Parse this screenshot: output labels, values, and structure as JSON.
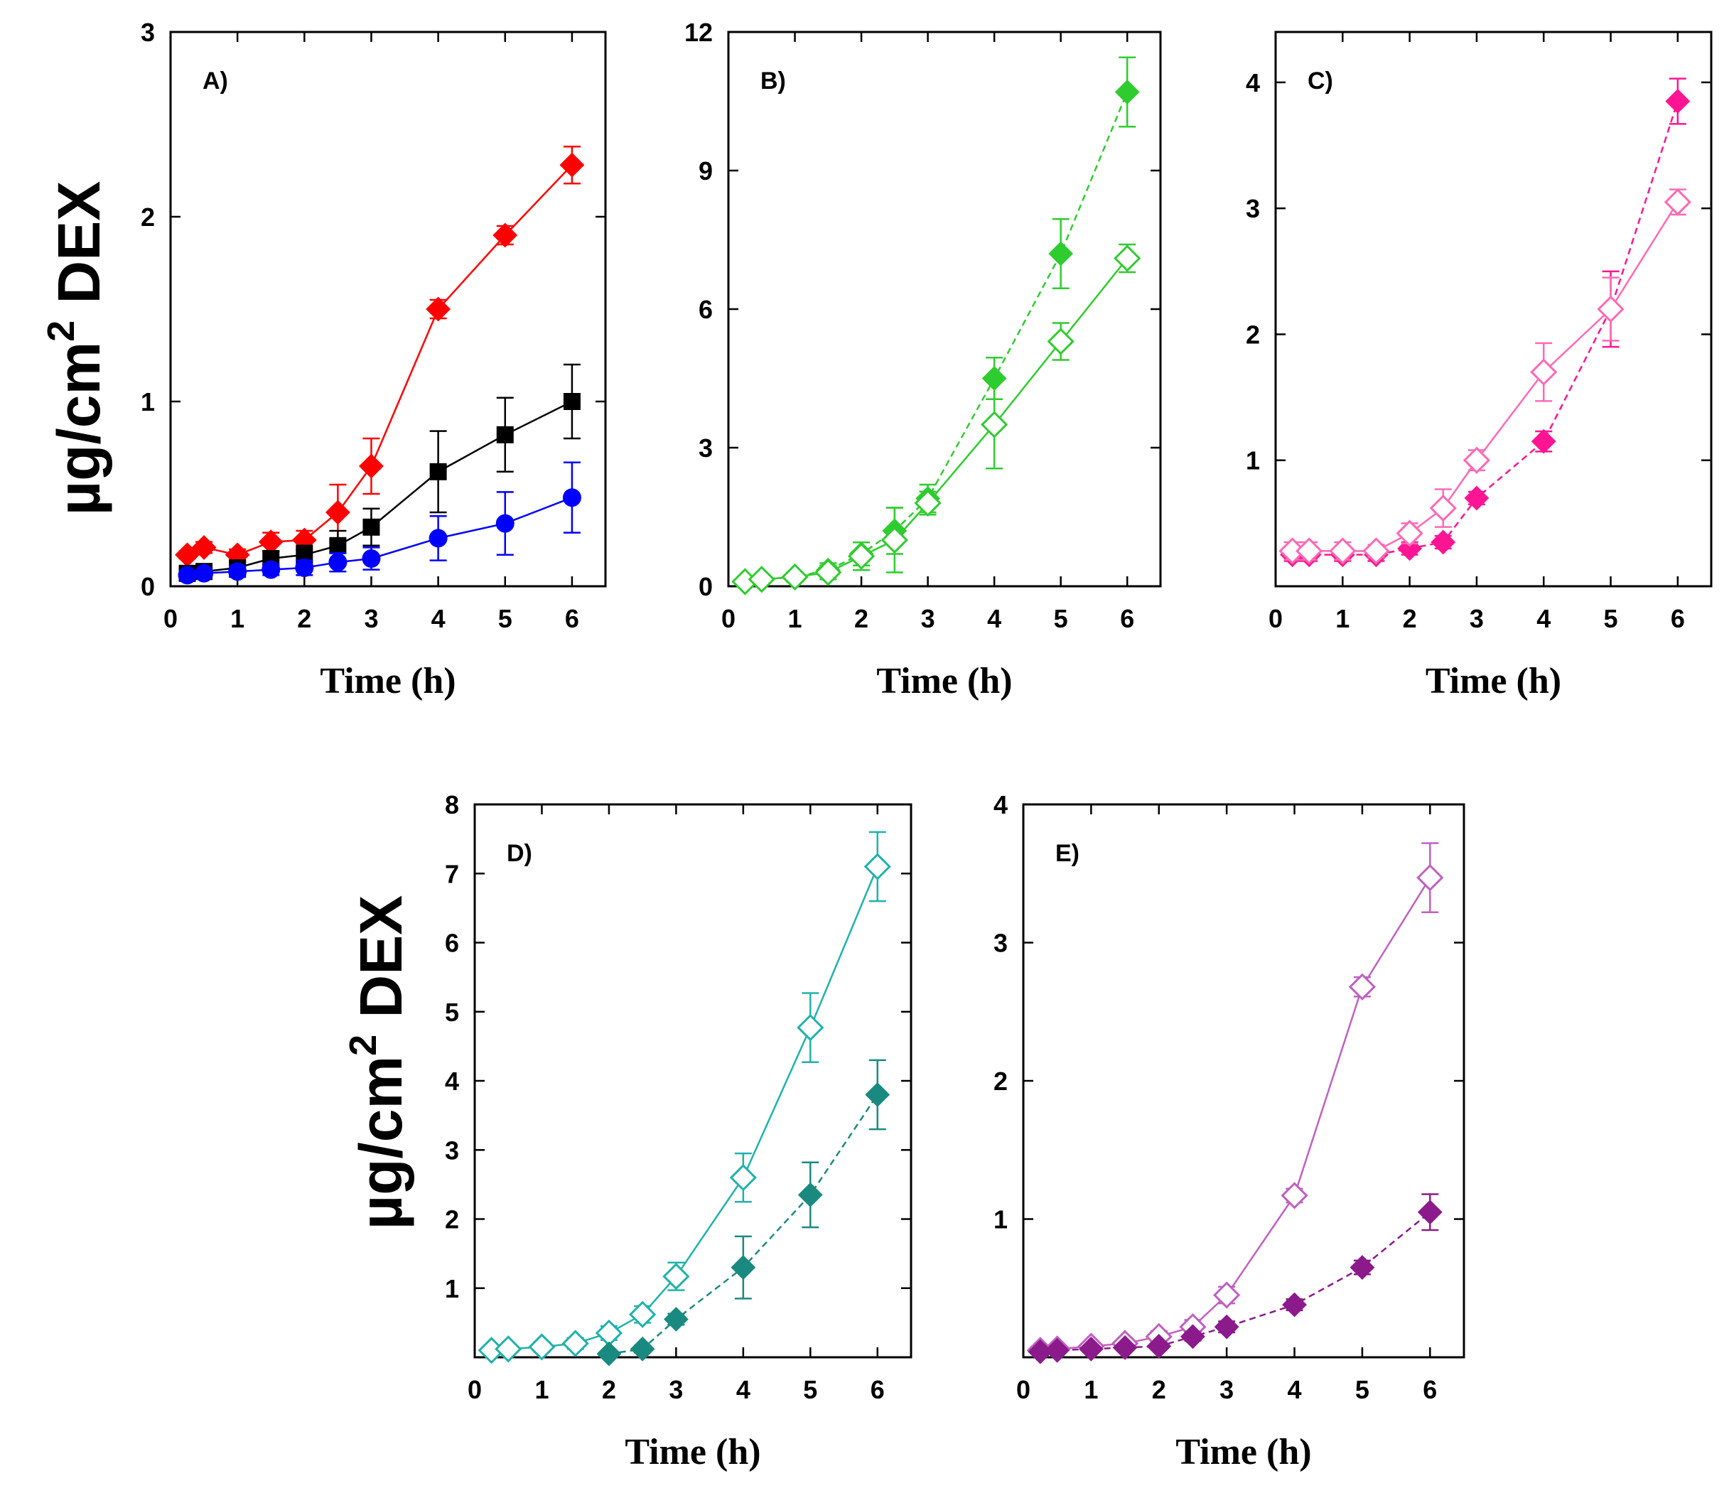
{
  "figure": {
    "ylabel_top": {
      "pre": "µg/cm",
      "sup": "2",
      "post": " DEX"
    },
    "ylabel_bottom": {
      "pre": "µg/cm",
      "sup": "2",
      "post": " DEX"
    }
  },
  "chart_data": [
    {
      "panel_label": "A)",
      "type": "line",
      "title": "",
      "xlabel": "Time (h)",
      "ylabel": "µg/cm2 DEX",
      "xlim": [
        0,
        6.5
      ],
      "ylim": [
        0,
        3
      ],
      "xticks": [
        0,
        1,
        2,
        3,
        4,
        5,
        6
      ],
      "yticks": [
        0,
        1,
        2,
        3
      ],
      "series": [
        {
          "name": "red",
          "color": "#ff0000",
          "marker": "diamond-filled",
          "dashed": false,
          "x": [
            0.25,
            0.5,
            1,
            1.5,
            2,
            2.5,
            3,
            4,
            5,
            6
          ],
          "values": [
            0.17,
            0.21,
            0.17,
            0.24,
            0.25,
            0.4,
            0.65,
            1.5,
            1.9,
            2.28
          ],
          "errors": [
            0.02,
            0.03,
            0.03,
            0.05,
            0.05,
            0.15,
            0.15,
            0.05,
            0.05,
            0.1
          ]
        },
        {
          "name": "black",
          "color": "#000000",
          "marker": "square-filled",
          "dashed": false,
          "x": [
            0.25,
            0.5,
            1,
            1.5,
            2,
            2.5,
            3,
            4,
            5,
            6
          ],
          "values": [
            0.07,
            0.08,
            0.1,
            0.15,
            0.17,
            0.22,
            0.32,
            0.62,
            0.82,
            1.0
          ],
          "errors": [
            0.02,
            0.02,
            0.03,
            0.04,
            0.05,
            0.08,
            0.1,
            0.22,
            0.2,
            0.2
          ]
        },
        {
          "name": "blue",
          "color": "#0000ff",
          "marker": "circle-filled",
          "dashed": false,
          "x": [
            0.25,
            0.5,
            1,
            1.5,
            2,
            2.5,
            3,
            4,
            5,
            6
          ],
          "values": [
            0.06,
            0.07,
            0.08,
            0.09,
            0.1,
            0.13,
            0.15,
            0.26,
            0.34,
            0.48
          ],
          "errors": [
            0.02,
            0.02,
            0.03,
            0.03,
            0.04,
            0.05,
            0.06,
            0.12,
            0.17,
            0.19
          ]
        }
      ]
    },
    {
      "panel_label": "B)",
      "type": "line",
      "title": "",
      "xlabel": "Time (h)",
      "ylabel": "",
      "xlim": [
        0,
        6.5
      ],
      "ylim": [
        0,
        12
      ],
      "xticks": [
        0,
        1,
        2,
        3,
        4,
        5,
        6
      ],
      "yticks": [
        0,
        3,
        6,
        9,
        12
      ],
      "series": [
        {
          "name": "filled",
          "color": "#2ecc2e",
          "marker": "diamond-filled",
          "dashed": true,
          "x": [
            0.25,
            0.5,
            1,
            1.5,
            2,
            2.5,
            3,
            4,
            5,
            6
          ],
          "values": [
            0.1,
            0.15,
            0.2,
            0.35,
            0.7,
            1.2,
            1.9,
            4.5,
            7.2,
            10.7
          ],
          "errors": [
            0.05,
            0.05,
            0.1,
            0.15,
            0.25,
            0.5,
            0.3,
            0.45,
            0.75,
            0.75
          ]
        },
        {
          "name": "open",
          "color": "#2ecc2e",
          "marker": "diamond-open",
          "dashed": false,
          "x": [
            0.25,
            0.5,
            1,
            1.5,
            2,
            2.5,
            3,
            4,
            5,
            6
          ],
          "values": [
            0.1,
            0.15,
            0.2,
            0.3,
            0.65,
            1.0,
            1.8,
            3.5,
            5.3,
            7.1
          ],
          "errors": [
            0.05,
            0.05,
            0.1,
            0.15,
            0.3,
            0.7,
            0.25,
            0.95,
            0.4,
            0.3
          ]
        }
      ]
    },
    {
      "panel_label": "C)",
      "type": "line",
      "title": "",
      "xlabel": "Time (h)",
      "ylabel": "",
      "xlim": [
        0,
        6.5
      ],
      "ylim": [
        0,
        4.4
      ],
      "xticks": [
        0,
        1,
        2,
        3,
        4,
        5,
        6
      ],
      "yticks": [
        1,
        2,
        3,
        4
      ],
      "series": [
        {
          "name": "filled",
          "color": "#ff1493",
          "marker": "diamond-filled",
          "dashed": true,
          "x": [
            0.25,
            0.5,
            1,
            1.5,
            2,
            2.5,
            3,
            4,
            5,
            6
          ],
          "values": [
            0.25,
            0.25,
            0.25,
            0.25,
            0.3,
            0.35,
            0.7,
            1.15,
            2.2,
            3.85
          ],
          "errors": [
            0.05,
            0.05,
            0.05,
            0.05,
            0.05,
            0.05,
            0.05,
            0.08,
            0.3,
            0.18
          ]
        },
        {
          "name": "open",
          "color": "#ff69b4",
          "marker": "diamond-open",
          "dashed": false,
          "x": [
            0.25,
            0.5,
            1,
            1.5,
            2,
            2.5,
            3,
            4,
            5,
            6
          ],
          "values": [
            0.28,
            0.28,
            0.28,
            0.28,
            0.42,
            0.62,
            1.0,
            1.7,
            2.2,
            3.05
          ],
          "errors": [
            0.07,
            0.07,
            0.07,
            0.05,
            0.08,
            0.15,
            0.08,
            0.23,
            0.25,
            0.1
          ]
        }
      ]
    },
    {
      "panel_label": "D)",
      "type": "line",
      "title": "",
      "xlabel": "Time (h)",
      "ylabel": "µg/cm2 DEX",
      "xlim": [
        0,
        6.5
      ],
      "ylim": [
        0,
        8
      ],
      "xticks": [
        0,
        1,
        2,
        3,
        4,
        5,
        6
      ],
      "yticks": [
        1,
        2,
        3,
        4,
        5,
        6,
        7,
        8
      ],
      "series": [
        {
          "name": "open",
          "color": "#20b2aa",
          "marker": "diamond-open",
          "dashed": false,
          "x": [
            0.25,
            0.5,
            1,
            1.5,
            2,
            2.5,
            3,
            4,
            5,
            6
          ],
          "values": [
            0.1,
            0.12,
            0.15,
            0.2,
            0.35,
            0.62,
            1.17,
            2.6,
            4.77,
            7.1
          ],
          "errors": [
            0.05,
            0.05,
            0.07,
            0.08,
            0.1,
            0.12,
            0.2,
            0.35,
            0.5,
            0.5
          ]
        },
        {
          "name": "filled",
          "color": "#1a8a80",
          "marker": "diamond-filled",
          "dashed": true,
          "x": [
            2,
            2.5,
            3,
            4,
            5,
            6
          ],
          "values": [
            0.05,
            0.12,
            0.55,
            1.3,
            2.35,
            3.8
          ],
          "errors": [
            0.03,
            0.05,
            0.08,
            0.45,
            0.47,
            0.5
          ]
        }
      ]
    },
    {
      "panel_label": "E)",
      "type": "line",
      "title": "",
      "xlabel": "Time (h)",
      "ylabel": "",
      "xlim": [
        0,
        6.5
      ],
      "ylim": [
        0,
        4
      ],
      "xticks": [
        0,
        1,
        2,
        3,
        4,
        5,
        6
      ],
      "yticks": [
        1,
        2,
        3,
        4
      ],
      "series": [
        {
          "name": "open",
          "color": "#c060c0",
          "marker": "diamond-open",
          "dashed": false,
          "x": [
            0.25,
            0.5,
            1,
            1.5,
            2,
            2.5,
            3,
            4,
            5,
            6
          ],
          "values": [
            0.05,
            0.06,
            0.08,
            0.1,
            0.15,
            0.22,
            0.45,
            1.17,
            2.68,
            3.47
          ],
          "errors": [
            0.02,
            0.02,
            0.03,
            0.03,
            0.04,
            0.05,
            0.06,
            0.05,
            0.07,
            0.25
          ]
        },
        {
          "name": "filled",
          "color": "#8b1a8b",
          "marker": "diamond-filled",
          "dashed": true,
          "x": [
            0.25,
            0.5,
            1,
            1.5,
            2,
            2.5,
            3,
            4,
            5,
            6
          ],
          "values": [
            0.04,
            0.05,
            0.06,
            0.07,
            0.08,
            0.15,
            0.22,
            0.38,
            0.65,
            1.05
          ],
          "errors": [
            0.01,
            0.01,
            0.02,
            0.02,
            0.02,
            0.03,
            0.04,
            0.04,
            0.05,
            0.13
          ]
        }
      ]
    }
  ]
}
